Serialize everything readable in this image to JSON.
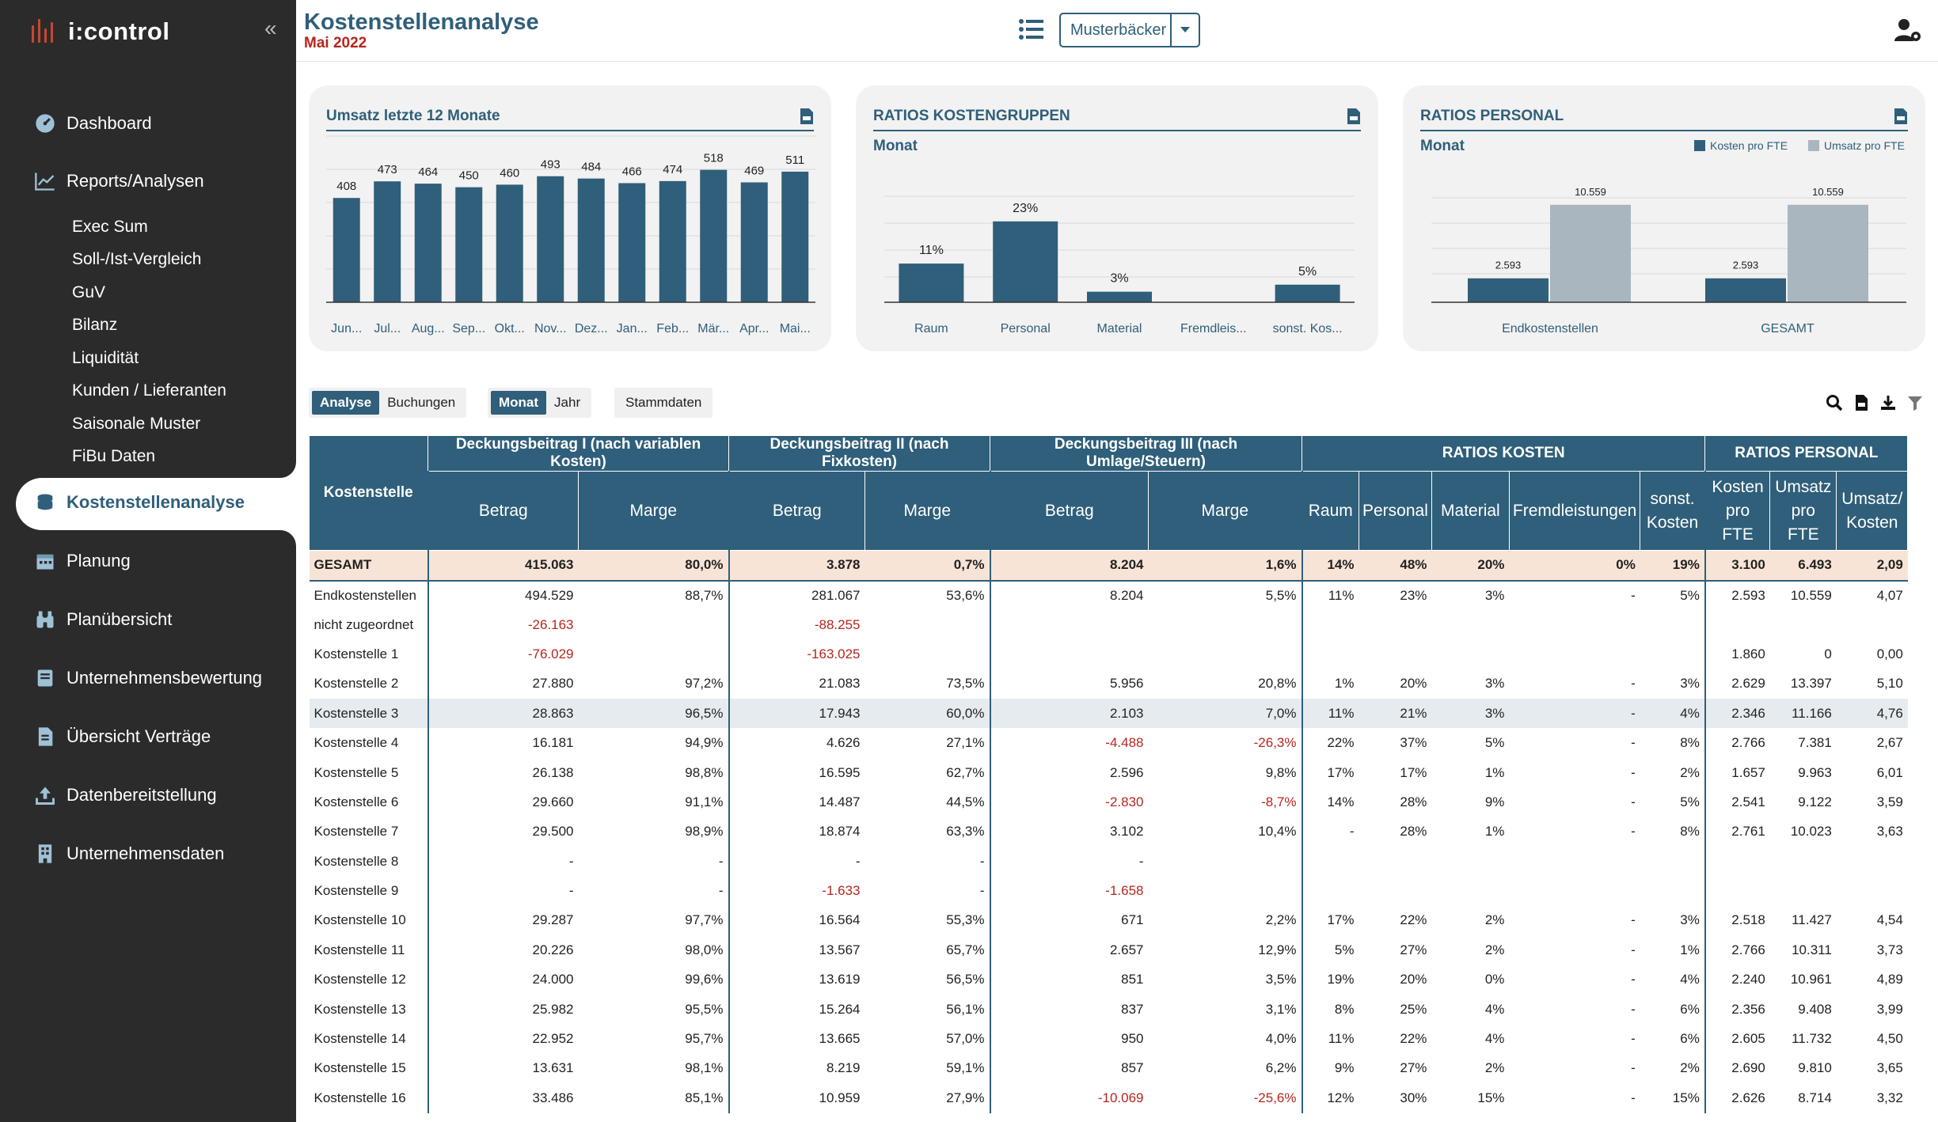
{
  "app": {
    "name": "i:control"
  },
  "sidebar": {
    "items": [
      {
        "label": "Dashboard",
        "icon": "gauge-icon"
      },
      {
        "label": "Reports/Analysen",
        "icon": "line-chart-icon"
      },
      {
        "label": "Kostenstellenanalyse",
        "icon": "coins-icon",
        "active": true
      },
      {
        "label": "Planung",
        "icon": "calendar-icon"
      },
      {
        "label": "Planübersicht",
        "icon": "binoculars-icon"
      },
      {
        "label": "Unternehmensbewertung",
        "icon": "book-icon"
      },
      {
        "label": "Übersicht Verträge",
        "icon": "file-contract-icon"
      },
      {
        "label": "Datenbereitstellung",
        "icon": "upload-icon"
      },
      {
        "label": "Unternehmensdaten",
        "icon": "building-icon"
      }
    ],
    "sub_items": [
      "Exec Sum",
      "Soll-/Ist-Vergleich",
      "GuV",
      "Bilanz",
      "Liquidität",
      "Kunden / Lieferanten",
      "Saisonale Muster",
      "FiBu Daten"
    ]
  },
  "header": {
    "title": "Kostenstellenanalyse",
    "subtitle": "Mai 2022",
    "company_select": "Musterbäcker"
  },
  "cards": {
    "umsatz": {
      "title": "Umsatz letzte 12 Monate"
    },
    "kostengruppen": {
      "title": "RATIOS KOSTENGRUPPEN",
      "subtitle": "Monat"
    },
    "personal": {
      "title": "RATIOS PERSONAL",
      "subtitle": "Monat",
      "legend": [
        "Kosten pro FTE",
        "Umsatz pro FTE"
      ]
    }
  },
  "colors": {
    "accent": "#2f5f7a",
    "secondary": "#a9b6bf",
    "negative": "#b5261e",
    "total_row": "#f8e4d7"
  },
  "chart_data": [
    {
      "type": "bar",
      "title": "Umsatz letzte 12 Monate",
      "categories": [
        "Jun...",
        "Jul...",
        "Aug...",
        "Sep...",
        "Okt...",
        "Nov...",
        "Dez...",
        "Jan...",
        "Feb...",
        "Mär...",
        "Apr...",
        "Mai..."
      ],
      "values": [
        408,
        473,
        464,
        450,
        460,
        493,
        484,
        466,
        474,
        518,
        469,
        511
      ],
      "ylim": [
        0,
        650
      ],
      "grid": true
    },
    {
      "type": "bar",
      "title": "RATIOS KOSTENGRUPPEN",
      "categories": [
        "Raum",
        "Personal",
        "Material",
        "Fremdleis...",
        "sonst. Kos..."
      ],
      "values": [
        11,
        23,
        3,
        0,
        5
      ],
      "value_labels": [
        "11%",
        "23%",
        "3%",
        "",
        "5%"
      ],
      "ylim": [
        0,
        35
      ],
      "grid": true
    },
    {
      "type": "bar",
      "title": "RATIOS PERSONAL",
      "categories": [
        "Endkostenstellen",
        "GESAMT"
      ],
      "series": [
        {
          "name": "Kosten pro FTE",
          "values": [
            2593,
            2593
          ],
          "labels": [
            "2.593",
            "2.593"
          ]
        },
        {
          "name": "Umsatz pro FTE",
          "values": [
            10559,
            10559
          ],
          "labels": [
            "10.559",
            "10.559"
          ]
        }
      ],
      "ylim": [
        0,
        13000
      ],
      "legend": "top-right",
      "grid": true
    }
  ],
  "toolbar": {
    "view_tabs": [
      "Analyse",
      "Buchungen"
    ],
    "period_tabs": [
      "Monat",
      "Jahr"
    ],
    "stammdaten": "Stammdaten"
  },
  "table": {
    "groups": [
      "Deckungsbeitrag I (nach variablen Kosten)",
      "Deckungsbeitrag II (nach Fixkosten)",
      "Deckungsbeitrag III (nach Umlage/Steuern)",
      "RATIOS KOSTEN",
      "RATIOS PERSONAL"
    ],
    "first_col": "Kostenstelle",
    "columns": [
      "Betrag",
      "Marge",
      "Betrag",
      "Marge",
      "Betrag",
      "Marge",
      "Raum",
      "Personal",
      "Material",
      "Fremdleistungen",
      "sonst. Kosten",
      "Kosten pro FTE",
      "Umsatz pro FTE",
      "Umsatz/ Kosten"
    ],
    "total": [
      "GESAMT",
      "415.063",
      "80,0%",
      "3.878",
      "0,7%",
      "8.204",
      "1,6%",
      "14%",
      "48%",
      "20%",
      "0%",
      "19%",
      "3.100",
      "6.493",
      "2,09"
    ],
    "rows": [
      [
        "Endkostenstellen",
        "494.529",
        "88,7%",
        "281.067",
        "53,6%",
        "8.204",
        "5,5%",
        "11%",
        "23%",
        "3%",
        "-",
        "5%",
        "2.593",
        "10.559",
        "4,07"
      ],
      [
        "nicht zugeordnet",
        "-26.163",
        "",
        "-88.255",
        "",
        "",
        "",
        "",
        "",
        "",
        "",
        "",
        "",
        "",
        ""
      ],
      [
        "Kostenstelle 1",
        "-76.029",
        "",
        "-163.025",
        "",
        "",
        "",
        "",
        "",
        "",
        "",
        "",
        "1.860",
        "0",
        "0,00"
      ],
      [
        "Kostenstelle 2",
        "27.880",
        "97,2%",
        "21.083",
        "73,5%",
        "5.956",
        "20,8%",
        "1%",
        "20%",
        "3%",
        "-",
        "3%",
        "2.629",
        "13.397",
        "5,10"
      ],
      [
        "Kostenstelle 3",
        "28.863",
        "96,5%",
        "17.943",
        "60,0%",
        "2.103",
        "7,0%",
        "11%",
        "21%",
        "3%",
        "-",
        "4%",
        "2.346",
        "11.166",
        "4,76"
      ],
      [
        "Kostenstelle 4",
        "16.181",
        "94,9%",
        "4.626",
        "27,1%",
        "-4.488",
        "-26,3%",
        "22%",
        "37%",
        "5%",
        "-",
        "8%",
        "2.766",
        "7.381",
        "2,67"
      ],
      [
        "Kostenstelle 5",
        "26.138",
        "98,8%",
        "16.595",
        "62,7%",
        "2.596",
        "9,8%",
        "17%",
        "17%",
        "1%",
        "-",
        "2%",
        "1.657",
        "9.963",
        "6,01"
      ],
      [
        "Kostenstelle 6",
        "29.660",
        "91,1%",
        "14.487",
        "44,5%",
        "-2.830",
        "-8,7%",
        "14%",
        "28%",
        "9%",
        "-",
        "5%",
        "2.541",
        "9.122",
        "3,59"
      ],
      [
        "Kostenstelle 7",
        "29.500",
        "98,9%",
        "18.874",
        "63,3%",
        "3.102",
        "10,4%",
        "-",
        "28%",
        "1%",
        "-",
        "8%",
        "2.761",
        "10.023",
        "3,63"
      ],
      [
        "Kostenstelle 8",
        "-",
        "-",
        "-",
        "-",
        "-",
        "",
        "",
        "",
        "",
        "",
        "",
        "",
        "",
        ""
      ],
      [
        "Kostenstelle 9",
        "-",
        "-",
        "-1.633",
        "-",
        "-1.658",
        "",
        "",
        "",
        "",
        "",
        "",
        "",
        "",
        ""
      ],
      [
        "Kostenstelle 10",
        "29.287",
        "97,7%",
        "16.564",
        "55,3%",
        "671",
        "2,2%",
        "17%",
        "22%",
        "2%",
        "-",
        "3%",
        "2.518",
        "11.427",
        "4,54"
      ],
      [
        "Kostenstelle 11",
        "20.226",
        "98,0%",
        "13.567",
        "65,7%",
        "2.657",
        "12,9%",
        "5%",
        "27%",
        "2%",
        "-",
        "1%",
        "2.766",
        "10.311",
        "3,73"
      ],
      [
        "Kostenstelle 12",
        "24.000",
        "99,6%",
        "13.619",
        "56,5%",
        "851",
        "3,5%",
        "19%",
        "20%",
        "0%",
        "-",
        "4%",
        "2.240",
        "10.961",
        "4,89"
      ],
      [
        "Kostenstelle 13",
        "25.982",
        "95,5%",
        "15.264",
        "56,1%",
        "837",
        "3,1%",
        "8%",
        "25%",
        "4%",
        "-",
        "6%",
        "2.356",
        "9.408",
        "3,99"
      ],
      [
        "Kostenstelle 14",
        "22.952",
        "95,7%",
        "13.665",
        "57,0%",
        "950",
        "4,0%",
        "11%",
        "22%",
        "4%",
        "-",
        "6%",
        "2.605",
        "11.732",
        "4,50"
      ],
      [
        "Kostenstelle 15",
        "13.631",
        "98,1%",
        "8.219",
        "59,1%",
        "857",
        "6,2%",
        "9%",
        "27%",
        "2%",
        "-",
        "2%",
        "2.690",
        "9.810",
        "3,65"
      ],
      [
        "Kostenstelle 16",
        "33.486",
        "85,1%",
        "10.959",
        "27,9%",
        "-10.069",
        "-25,6%",
        "12%",
        "30%",
        "15%",
        "-",
        "15%",
        "2.626",
        "8.714",
        "3,32"
      ]
    ]
  }
}
